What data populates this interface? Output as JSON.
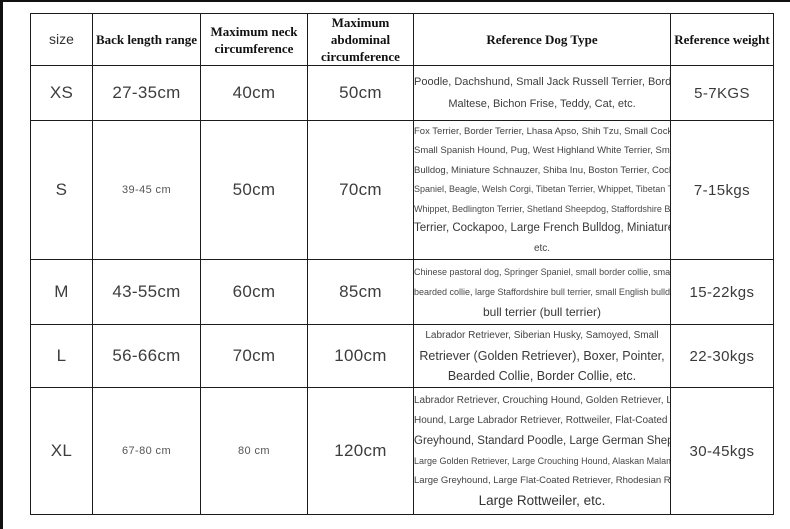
{
  "table": {
    "columns": [
      {
        "label": "size"
      },
      {
        "label": "Back length range"
      },
      {
        "label": "Maximum neck circumference"
      },
      {
        "label": "Maximum abdominal circumference"
      },
      {
        "label": "Reference Dog Type"
      },
      {
        "label": "Reference weight"
      }
    ],
    "rows": [
      {
        "size": "XS",
        "back_length": "27-35cm",
        "neck": "40cm",
        "abdominal": "50cm",
        "dog_type_lines": [
          "Poodle, Dachshund, Small Jack Russell Terrier, Border Terrier,",
          "Maltese, Bichon Frise, Teddy, Cat, etc."
        ],
        "weight": "5-7KGS"
      },
      {
        "size": "S",
        "back_length": "39-45 cm",
        "neck": "50cm",
        "abdominal": "70cm",
        "dog_type_lines": [
          "Fox Terrier, Border Terrier, Lhasa Apso, Shih Tzu, Small Cockapoo,",
          "Small Spanish Hound, Pug, West Highland White Terrier, Small French",
          "Bulldog, Miniature Schnauzer, Shiba Inu, Boston Terrier, Cocker",
          "Spaniel, Beagle, Welsh Corgi, Tibetan Terrier, Whippet, Tibetan Terrier,",
          "Whippet, Bedlington Terrier, Shetland Sheepdog, Staffordshire Bull",
          "Terrier, Cockapoo, Large French Bulldog, Miniature Bull Terrier,",
          "etc."
        ],
        "weight": "7-15kgs"
      },
      {
        "size": "M",
        "back_length": "43-55cm",
        "neck": "60cm",
        "abdominal": "85cm",
        "dog_type_lines": [
          "Chinese pastoral dog, Springer Spaniel, small border collie, small",
          "bearded collie, large Staffordshire bull terrier, small English bulldog,",
          "bull terrier (bull terrier)"
        ],
        "weight": "15-22kgs"
      },
      {
        "size": "L",
        "back_length": "56-66cm",
        "neck": "70cm",
        "abdominal": "100cm",
        "dog_type_lines": [
          "Labrador Retriever, Siberian Husky, Samoyed, Small",
          "Retriever (Golden Retriever), Boxer, Pointer,",
          "Bearded Collie, Border Collie, etc."
        ],
        "weight": "22-30kgs"
      },
      {
        "size": "XL",
        "back_length": "67-80 cm",
        "neck": "80 cm",
        "abdominal": "120cm",
        "dog_type_lines": [
          "Labrador Retriever, Crouching Hound, Golden Retriever, Large Pointer",
          "Hound, Large Labrador Retriever, Rottweiler, Flat-Coated Retriever,",
          "Greyhound, Standard Poodle, Large German Shepherd,",
          "Large Golden Retriever, Large Crouching Hound, Alaskan Malamute,",
          "Large Greyhound, Large Flat-Coated Retriever, Rhodesian Ridgeback,",
          "Large Rottweiler, etc."
        ],
        "weight": "30-45kgs"
      }
    ]
  },
  "colors": {
    "border": "#1c1c1c",
    "text": "#3d3d3d",
    "background": "#ffffff"
  }
}
